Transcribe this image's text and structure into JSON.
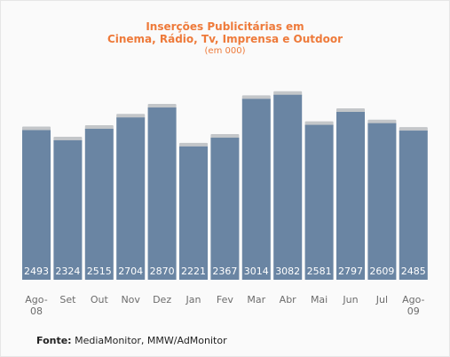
{
  "title": {
    "line1": "Inserções Publicitárias em",
    "line2": "Cinema, Rádio, Tv, Imprensa e Outdoor",
    "subtitle": "(em 000)"
  },
  "source": {
    "label": "Fonte:",
    "text": "MediaMonitor, MMW/AdMonitor"
  },
  "colors": {
    "bar": "#6a85a3",
    "bar_cap": "#c3c6c9",
    "title": "#ee7a3a",
    "tick_label": "#6c6c6c"
  },
  "chart_data": {
    "type": "bar",
    "categories": [
      [
        "Ago-",
        "08"
      ],
      [
        "Set"
      ],
      [
        "Out"
      ],
      [
        "Nov"
      ],
      [
        "Dez"
      ],
      [
        "Jan"
      ],
      [
        "Fev"
      ],
      [
        "Mar"
      ],
      [
        "Abr"
      ],
      [
        "Mai"
      ],
      [
        "Jun"
      ],
      [
        "Jul"
      ],
      [
        "Ago-",
        "09"
      ]
    ],
    "values": [
      2493,
      2324,
      2515,
      2704,
      2870,
      2221,
      2367,
      3014,
      3082,
      2581,
      2797,
      2609,
      2485
    ],
    "data_labels": [
      "2493",
      "2324",
      "2515",
      "2704",
      "2870",
      "2221",
      "2367",
      "3014",
      "3082",
      "2581",
      "2797",
      "2609",
      "2485"
    ],
    "ylim": [
      0,
      3300
    ],
    "grid": false,
    "legend": "none"
  }
}
